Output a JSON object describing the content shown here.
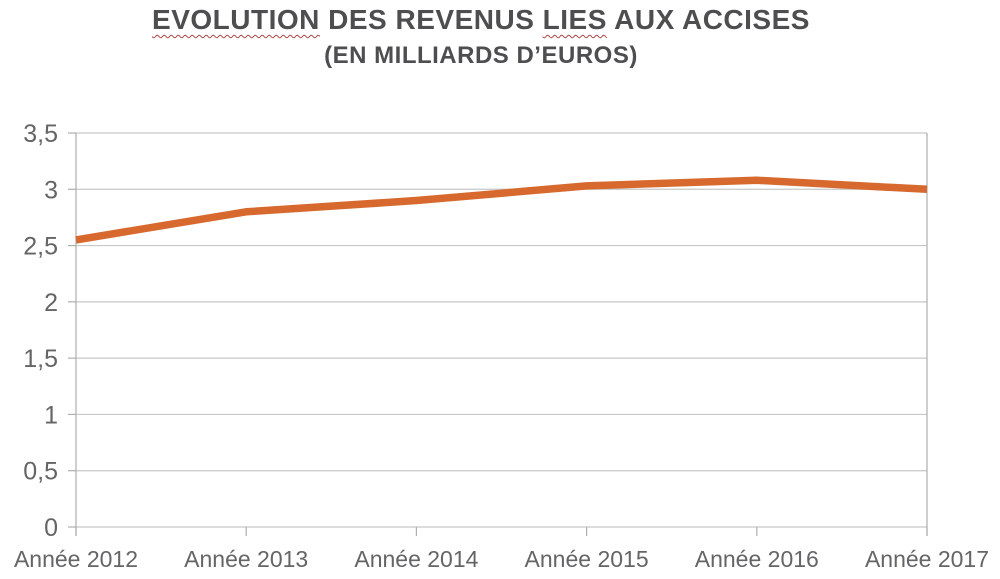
{
  "title": {
    "parts": [
      {
        "text": "EVOLUTION",
        "spellcheck_underline": true
      },
      {
        "text": " DES REVENUS ",
        "spellcheck_underline": false
      },
      {
        "text": "LIES",
        "spellcheck_underline": true
      },
      {
        "text": " AUX ACCISES",
        "spellcheck_underline": false
      }
    ],
    "full": "EVOLUTION DES REVENUS LIES AUX ACCISES",
    "subtitle": "(EN MILLIARDS D’EUROS)"
  },
  "chart_data": {
    "type": "line",
    "title": "EVOLUTION DES REVENUS LIES AUX ACCISES",
    "subtitle": "(EN MILLIARDS D’EUROS)",
    "categories": [
      "Année 2012",
      "Année 2013",
      "Année 2014",
      "Année 2015",
      "Année 2016",
      "Année 2017"
    ],
    "values": [
      2.55,
      2.8,
      2.9,
      3.03,
      3.08,
      3.0
    ],
    "xlabel": "",
    "ylabel": "",
    "ylim": [
      0,
      3.5
    ],
    "ytick_values": [
      0,
      0.5,
      1,
      1.5,
      2,
      2.5,
      3,
      3.5
    ],
    "ytick_labels": [
      "0",
      "0,5",
      "1",
      "1,5",
      "2",
      "2,5",
      "3",
      "3,5"
    ],
    "grid": true,
    "legend": "none",
    "line_color": "#d7692f"
  },
  "colors": {
    "line": "#d7692f",
    "title_text": "#4e4e50",
    "axis_text": "#656567",
    "gridline": "#c7c7c7",
    "axis_line": "#aeaeae",
    "spellcheck_underline": "#a94442"
  }
}
